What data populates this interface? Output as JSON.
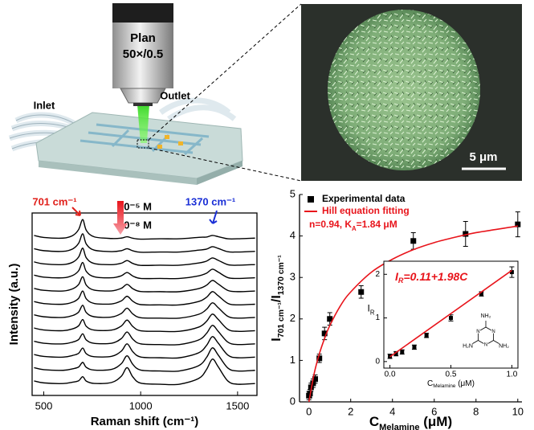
{
  "schematic": {
    "objective": [
      "Plan",
      "50×/0.5"
    ],
    "inlet": "Inlet",
    "outlet": "Outlet"
  },
  "sem": {
    "scale_bar": "5 μm"
  },
  "chart_data": [
    {
      "type": "line",
      "y_label": "Intensity (a.u.)",
      "x_label": "Raman shift (cm⁻¹)",
      "color": "#000000",
      "x": [
        450,
        500,
        600,
        650,
        680,
        701,
        720,
        760,
        850,
        900,
        930,
        960,
        1000,
        1100,
        1200,
        1300,
        1340,
        1370,
        1400,
        1450,
        1500,
        1590
      ],
      "series": [
        {
          "values": [
            11.3,
            11.15,
            11.1,
            11.3,
            11.75,
            12.5,
            11.68,
            11.2,
            11.07,
            11.1,
            11.2,
            11.09,
            11.02,
            11.05,
            11.05,
            11.16,
            11.18,
            11.3,
            11.21,
            11.05,
            11.05,
            11.1
          ]
        },
        {
          "values": [
            10.3,
            10.15,
            10.1,
            10.29,
            10.71,
            11.42,
            10.64,
            10.19,
            10.08,
            10.15,
            10.3,
            10.14,
            10.03,
            10.05,
            10.05,
            10.19,
            10.27,
            10.45,
            10.32,
            10.07,
            10.05,
            10.1
          ]
        },
        {
          "values": [
            9.3,
            9.15,
            9.1,
            9.28,
            9.67,
            10.34,
            9.6,
            9.18,
            9.09,
            9.2,
            9.4,
            9.18,
            9.04,
            9.05,
            9.05,
            9.22,
            9.36,
            9.6,
            9.42,
            9.09,
            9.05,
            9.1
          ]
        },
        {
          "values": [
            8.3,
            8.15,
            8.1,
            8.28,
            8.63,
            9.26,
            8.57,
            8.18,
            8.1,
            8.25,
            8.5,
            8.23,
            8.05,
            8.05,
            8.05,
            8.25,
            8.45,
            8.75,
            8.53,
            8.11,
            8.05,
            8.1
          ]
        },
        {
          "values": [
            7.3,
            7.15,
            7.1,
            7.27,
            7.59,
            8.18,
            7.53,
            7.17,
            7.11,
            7.3,
            7.6,
            7.27,
            7.06,
            7.05,
            7.05,
            7.28,
            7.54,
            7.9,
            7.63,
            7.14,
            7.05,
            7.1
          ]
        },
        {
          "values": [
            6.3,
            6.15,
            6.1,
            6.26,
            6.55,
            7.1,
            6.5,
            6.16,
            6.12,
            6.35,
            6.7,
            6.32,
            6.07,
            6.05,
            6.05,
            6.31,
            6.63,
            7.05,
            6.74,
            6.16,
            6.05,
            6.1
          ]
        },
        {
          "values": [
            5.3,
            5.15,
            5.1,
            5.25,
            5.51,
            6.02,
            5.46,
            5.15,
            5.13,
            5.4,
            5.8,
            5.36,
            5.08,
            5.05,
            5.05,
            5.34,
            5.72,
            6.2,
            5.84,
            5.18,
            5.05,
            5.1
          ]
        },
        {
          "values": [
            4.3,
            4.15,
            4.1,
            4.24,
            4.47,
            4.94,
            4.42,
            4.14,
            4.14,
            4.45,
            4.9,
            4.41,
            4.09,
            4.05,
            4.05,
            4.37,
            4.81,
            5.35,
            4.95,
            4.2,
            4.05,
            4.1
          ]
        },
        {
          "values": [
            3.3,
            3.15,
            3.1,
            3.24,
            3.43,
            3.86,
            3.39,
            3.14,
            3.15,
            3.5,
            4.0,
            3.45,
            3.1,
            3.05,
            3.05,
            3.4,
            3.9,
            4.5,
            4.05,
            3.23,
            3.05,
            3.1
          ]
        },
        {
          "values": [
            2.3,
            2.15,
            2.1,
            2.23,
            2.39,
            2.78,
            2.35,
            2.13,
            2.16,
            2.55,
            3.1,
            2.5,
            2.11,
            2.05,
            2.05,
            2.43,
            2.99,
            3.65,
            3.16,
            2.25,
            2.05,
            2.1
          ]
        },
        {
          "values": [
            1.3,
            1.15,
            1.1,
            1.22,
            1.35,
            1.7,
            1.32,
            1.12,
            1.17,
            1.6,
            2.2,
            1.54,
            1.12,
            1.05,
            1.05,
            1.46,
            2.08,
            2.8,
            2.26,
            1.27,
            1.05,
            1.1
          ]
        },
        {
          "values": [
            0.3,
            0.15,
            0.1,
            0.21,
            0.31,
            0.62,
            0.28,
            0.11,
            0.18,
            0.65,
            1.3,
            0.59,
            0.13,
            0.05,
            0.05,
            0.49,
            1.17,
            1.95,
            1.37,
            0.29,
            0.05,
            0.1
          ]
        }
      ],
      "xlim": [
        440,
        1600
      ],
      "xticks": [
        500,
        1000,
        1500
      ],
      "ylim": [
        -0.8,
        13
      ],
      "annotations": [
        {
          "text": "701 cm⁻¹",
          "color": "#e0201b"
        },
        {
          "text": "10⁻⁵ M",
          "color": "#000000"
        },
        {
          "text": "10⁻⁸ M",
          "color": "#000000"
        },
        {
          "text": "1370 cm⁻¹",
          "color": "#1a2fd6"
        }
      ]
    },
    {
      "type": "scatter",
      "x_label": [
        {
          "text": "C"
        },
        {
          "text": "Melamine",
          "sub": true
        },
        {
          "text": " (μM)"
        }
      ],
      "y_label": [
        {
          "text": "I"
        },
        {
          "text": "701 cm⁻¹",
          "sub": true
        },
        {
          "text": "/I"
        },
        {
          "text": "1370 cm⁻¹",
          "sub": true
        }
      ],
      "xlim": [
        -0.45,
        10.2
      ],
      "xticks": [
        0,
        2,
        4,
        6,
        8,
        10
      ],
      "ylim": [
        0,
        5
      ],
      "yticks": [
        0,
        1,
        2,
        3,
        4,
        5
      ],
      "legend": "upper left",
      "series": [
        {
          "name": "Experimental data",
          "color": "#000000",
          "x": [
            0,
            0.05,
            0.1,
            0.2,
            0.3,
            0.5,
            0.75,
            1,
            2.5,
            5,
            7.5,
            10
          ],
          "values": [
            0.15,
            0.2,
            0.35,
            0.45,
            0.55,
            1.05,
            1.65,
            2.0,
            2.65,
            3.88,
            4.05,
            4.28
          ],
          "errors": [
            0.1,
            0.1,
            0.1,
            0.1,
            0.1,
            0.1,
            0.15,
            0.15,
            0.15,
            0.2,
            0.3,
            0.3
          ]
        },
        {
          "name": "Hill equation fitting",
          "color": "#e8141b",
          "type": "line",
          "x": [
            0,
            0.25,
            0.5,
            0.75,
            1,
            1.5,
            2,
            3,
            4,
            5,
            6,
            7,
            8,
            9,
            10
          ],
          "values": [
            0,
            0.68,
            1.16,
            1.53,
            1.84,
            2.31,
            2.65,
            3.13,
            3.44,
            3.67,
            3.84,
            3.97,
            4.08,
            4.16,
            4.24
          ]
        }
      ],
      "annotation": [
        {
          "text": "n=0.94, K"
        },
        {
          "text": "A",
          "sub": true
        },
        {
          "text": "=1.84 μM"
        }
      ],
      "annotation_color": "#e8141b"
    },
    {
      "type": "scatter",
      "x_label": [
        {
          "text": "C"
        },
        {
          "text": "Melamine",
          "sub": true
        },
        {
          "text": " (μM)"
        }
      ],
      "y_label": [
        {
          "text": "I"
        },
        {
          "text": "R",
          "sub": true
        }
      ],
      "xlim": [
        -0.05,
        1.05
      ],
      "xticks": [
        {
          "value": 0,
          "label": "0.0"
        },
        {
          "value": 0.5,
          "label": "0.5"
        },
        {
          "value": 1,
          "label": "1.0"
        }
      ],
      "ylim": [
        -0.15,
        2.3
      ],
      "yticks": [
        0,
        1,
        2
      ],
      "series": [
        {
          "color": "#000000",
          "x": [
            0,
            0.05,
            0.1,
            0.2,
            0.3,
            0.5,
            0.75,
            1.0
          ],
          "values": [
            0.12,
            0.18,
            0.22,
            0.33,
            0.6,
            1.0,
            1.55,
            2.05
          ],
          "errors": [
            0.05,
            0.05,
            0.05,
            0.05,
            0.05,
            0.07,
            0.05,
            0.12
          ]
        },
        {
          "color": "#e8141b",
          "type": "line",
          "x": [
            0,
            1
          ],
          "values": [
            0.11,
            2.09
          ]
        }
      ],
      "annotation": [
        {
          "text": "I"
        },
        {
          "text": "R",
          "sub": true
        },
        {
          "text": "=0.11+1.98"
        },
        {
          "text": "C"
        }
      ],
      "annotation_color": "#e8141b",
      "structure_labels": [
        "NH₂",
        "H₂N",
        "NH₂",
        "N",
        "N",
        "N"
      ]
    }
  ]
}
